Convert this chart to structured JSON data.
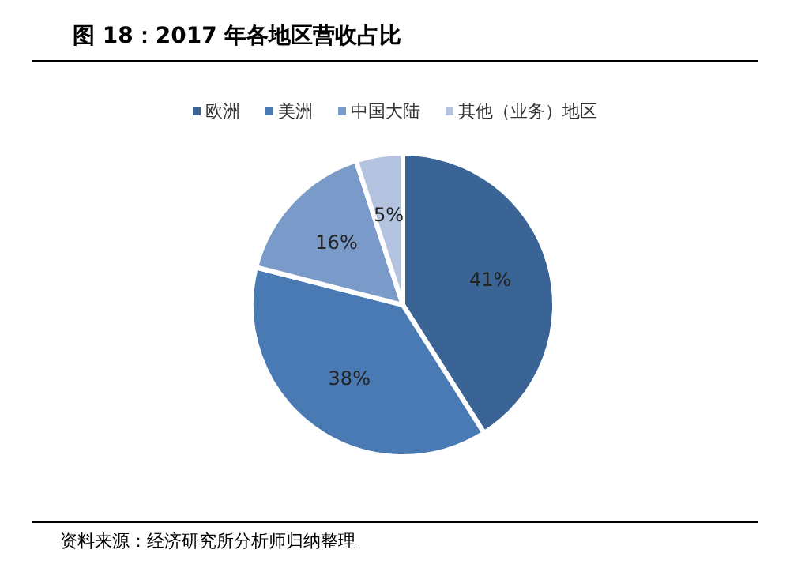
{
  "chart_data": {
    "type": "pie",
    "title": "图 18：2017 年各地区营收占比",
    "categories": [
      "欧洲",
      "美洲",
      "中国大陆",
      "其他（业务）地区"
    ],
    "values": [
      41,
      38,
      16,
      5
    ],
    "value_labels": [
      "41%",
      "38%",
      "16%",
      "5%"
    ],
    "colors": [
      "#3a6496",
      "#4a7ab4",
      "#7a9bc9",
      "#b4c4e0"
    ],
    "legend": "top",
    "annotations": [
      "资料来源：经济研究所分析师归纳整理"
    ]
  }
}
